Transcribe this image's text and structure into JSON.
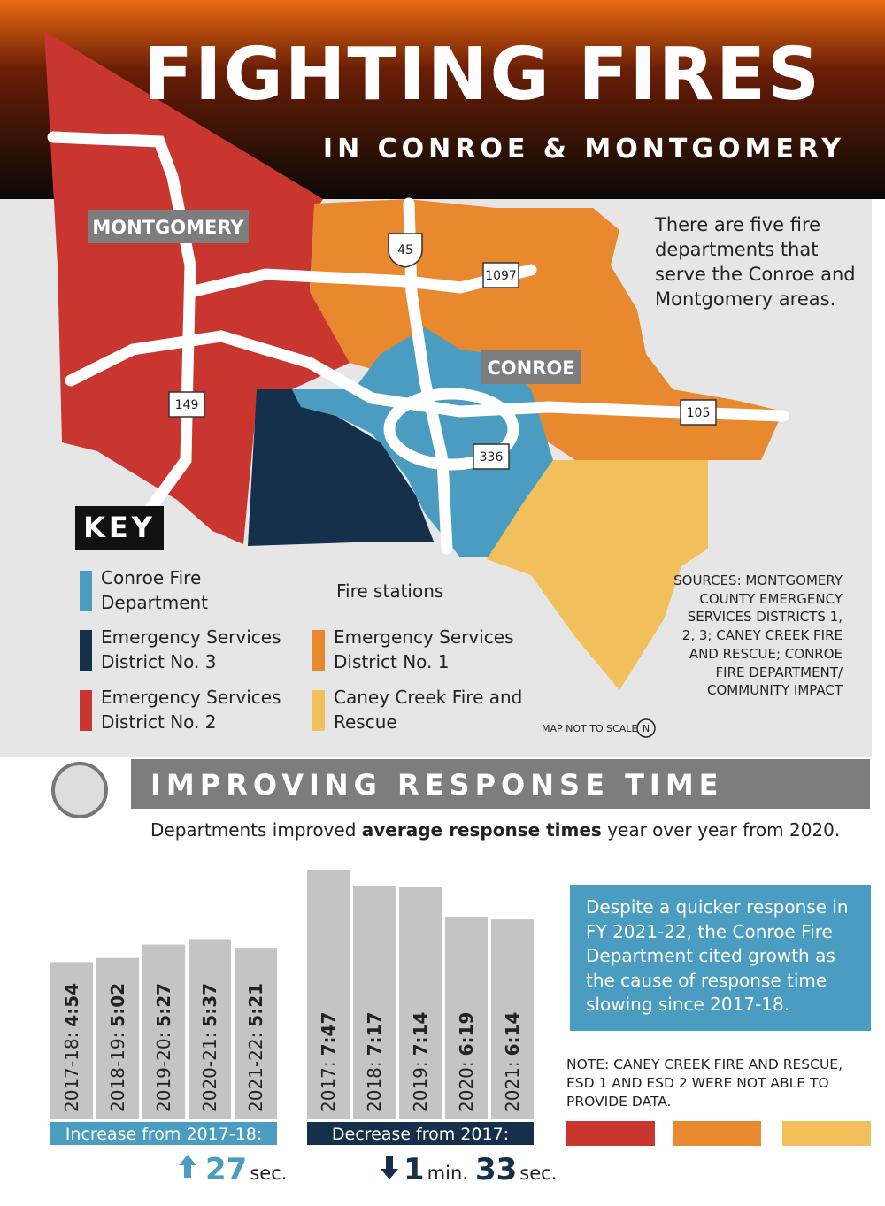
{
  "header": {
    "title": "FIGHTING FIRES",
    "subtitle": "IN CONROE & MONTGOMERY"
  },
  "map": {
    "places": [
      "MONTGOMERY",
      "CONROE"
    ],
    "roads": [
      "45",
      "1097",
      "149",
      "105",
      "336"
    ],
    "intro": "There are five fire departments that serve the Conroe and Montgomery areas.",
    "scale_note": "MAP NOT TO SCALE",
    "north": "N"
  },
  "key": {
    "title": "KEY",
    "fire_stations": "Fire stations",
    "items": [
      {
        "label": "Conroe Fire Department",
        "color": "#4a9cc0"
      },
      {
        "label": "Emergency Services District No. 3",
        "color": "#15304a"
      },
      {
        "label": "Emergency Services District No. 2",
        "color": "#c8362f"
      },
      {
        "label": "Emergency Services District No. 1",
        "color": "#e8892f"
      },
      {
        "label": "Caney Creek Fire and Rescue",
        "color": "#f2c05a"
      }
    ]
  },
  "sources": "SOURCES: MONTGOMERY COUNTY EMERGENCY SERVICES DISTRICTS 1, 2, 3; CANEY CREEK FIRE AND RESCUE; CONROE FIRE DEPARTMENT/ COMMUNITY IMPACT",
  "response": {
    "title": "IMPROVING RESPONSE TIME",
    "intro": [
      "Departments improved ",
      "average response times",
      " year over year from 2020."
    ]
  },
  "chart_data": [
    {
      "type": "bar",
      "categories": [
        "2017-18:",
        "2018-19:",
        "2019-20:",
        "2020-21:",
        "2021-22:"
      ],
      "values": [
        294,
        302,
        327,
        337,
        321
      ],
      "value_labels": [
        "4:54",
        "5:02",
        "5:27",
        "5:37",
        "5:21"
      ],
      "color": "#c4c4c4",
      "caption": "Increase from 2017-18:",
      "caption_color": "#4a9cc0",
      "change": [
        "27",
        "sec."
      ]
    },
    {
      "type": "bar",
      "categories": [
        "2017:",
        "2018:",
        "2019:",
        "2020:",
        "2021:"
      ],
      "values": [
        467,
        437,
        434,
        379,
        374
      ],
      "value_labels": [
        "7:47",
        "7:17",
        "7:14",
        "6:19",
        "6:14"
      ],
      "color": "#c4c4c4",
      "caption": "Decrease from 2017:",
      "caption_color": "#15304a",
      "change": [
        "1",
        "min.",
        "33",
        "sec."
      ]
    }
  ],
  "callout": "Despite a quicker response in FY 2021-22, the Conroe Fire Department cited growth as the cause of response time slowing since 2017-18.",
  "note": {
    "text": "NOTE: CANEY CREEK FIRE AND RESCUE, ESD 1 AND ESD 2 WERE NOT ABLE TO PROVIDE DATA.",
    "colors": [
      "#c8362f",
      "#e8892f",
      "#f2c05a"
    ]
  }
}
